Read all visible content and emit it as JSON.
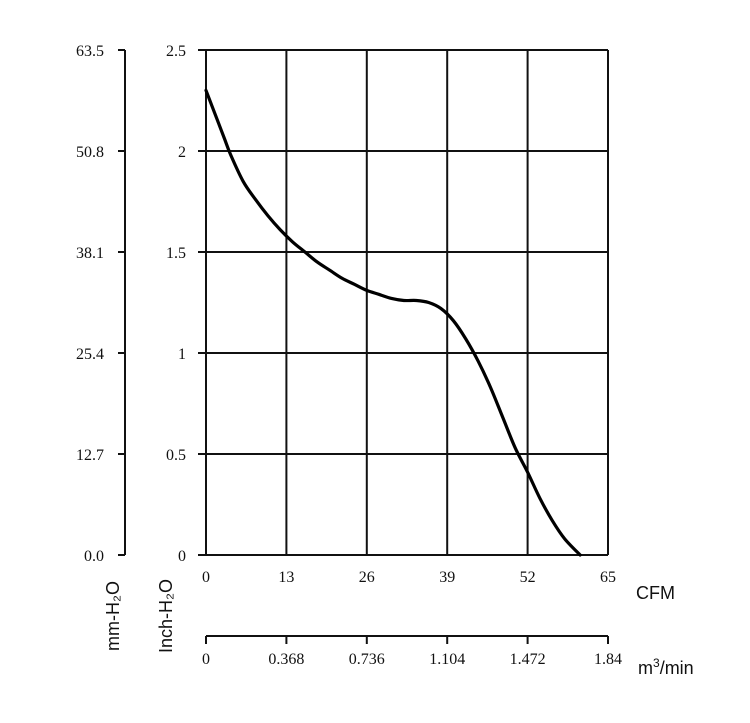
{
  "chart_data": {
    "type": "line",
    "title": "",
    "grid": true,
    "legend": "none",
    "colors": {
      "curve": "#000000",
      "grid": "#111111"
    },
    "x_primary": {
      "unit_label": "CFM",
      "ticks": [
        "0",
        "13",
        "26",
        "39",
        "52",
        "65"
      ],
      "range": [
        0,
        65
      ]
    },
    "x_secondary": {
      "unit_label_base": "m",
      "unit_label_sup": "3",
      "unit_label_suffix": "/min",
      "ticks": [
        "0",
        "0.368",
        "0.736",
        "1.104",
        "1.472",
        "1.84"
      ],
      "range": [
        0,
        1.84
      ]
    },
    "y_primary": {
      "unit_label": "Inch-H₂O",
      "ticks": [
        "0",
        "0.5",
        "1",
        "1.5",
        "2",
        "2.5"
      ],
      "range": [
        0,
        2.5
      ]
    },
    "y_secondary": {
      "unit_label": "mm-H₂O",
      "ticks": [
        "0.0",
        "12.7",
        "25.4",
        "38.1",
        "50.8",
        "63.5"
      ],
      "range": [
        0,
        63.5
      ]
    },
    "series": [
      {
        "x": [
          0,
          1,
          2,
          3,
          4,
          6,
          8,
          10,
          12,
          14,
          16,
          18,
          20,
          22,
          24,
          26,
          28,
          30,
          32,
          34,
          36,
          38,
          40,
          42,
          44,
          46,
          48,
          50,
          52,
          54,
          56,
          58,
          60.5
        ],
        "y": [
          2.3,
          2.22,
          2.14,
          2.06,
          1.98,
          1.85,
          1.76,
          1.68,
          1.61,
          1.55,
          1.5,
          1.45,
          1.41,
          1.37,
          1.34,
          1.31,
          1.29,
          1.27,
          1.26,
          1.26,
          1.25,
          1.22,
          1.16,
          1.07,
          0.96,
          0.83,
          0.68,
          0.53,
          0.41,
          0.28,
          0.17,
          0.08,
          0.0
        ]
      }
    ]
  }
}
